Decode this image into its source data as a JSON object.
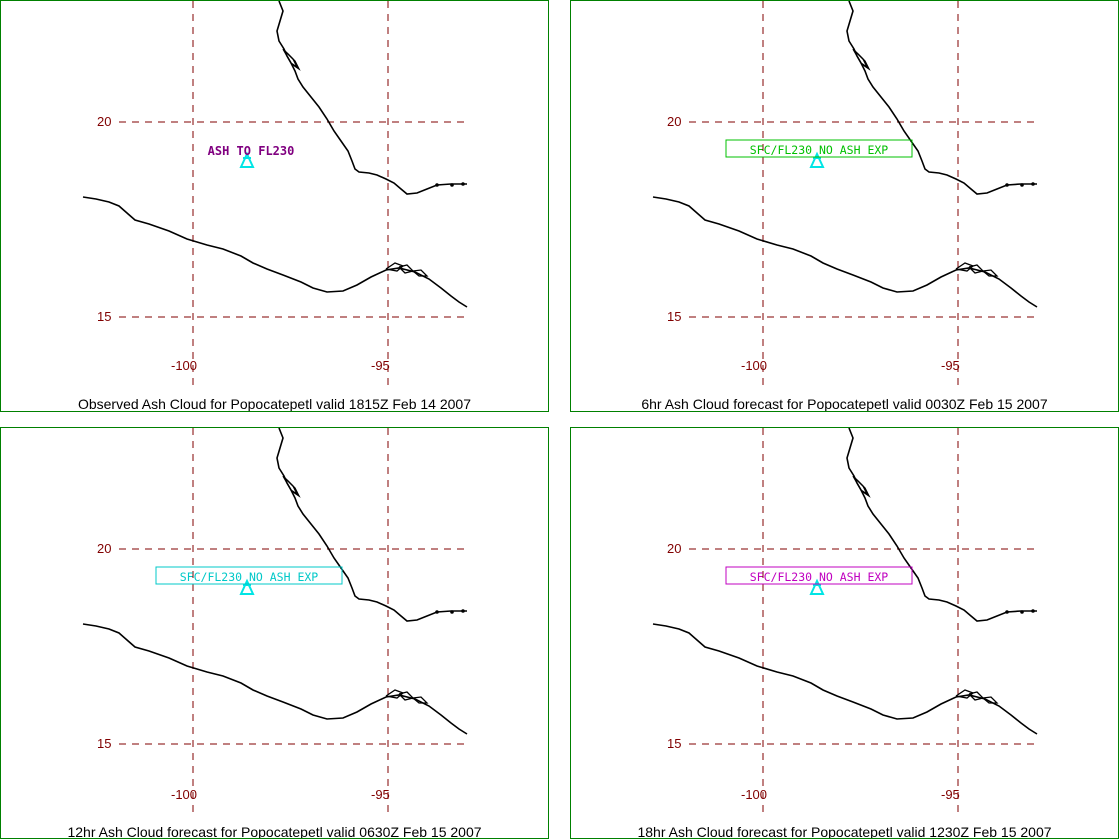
{
  "colors": {
    "border": "#008000",
    "grid": "#800000",
    "tick_text": "#800000",
    "coast": "#000000",
    "volcano": "#00e5e5"
  },
  "icons": {
    "volcano": "volcano-triangle-icon"
  },
  "axis": {
    "lat_ticks": [
      "20",
      "15"
    ],
    "lon_ticks": [
      "-100",
      "-95"
    ]
  },
  "panels": [
    {
      "caption": "Observed Ash Cloud for Popocatepetl valid 1815Z Feb 14 2007",
      "ash_label": "ASH TO FL230",
      "label_color": "#800080",
      "label_boxed": false
    },
    {
      "caption": "6hr Ash Cloud forecast for Popocatepetl valid 0030Z Feb 15 2007",
      "ash_label": "SFC/FL230 NO ASH EXP",
      "label_color": "#00c000",
      "label_boxed": true
    },
    {
      "caption": "12hr Ash Cloud forecast for Popocatepetl valid 0630Z Feb 15 2007",
      "ash_label": "SFC/FL230 NO ASH EXP",
      "label_color": "#00c8c8",
      "label_boxed": true
    },
    {
      "caption": "18hr Ash Cloud forecast for Popocatepetl valid 1230Z Feb 15 2007",
      "ash_label": "SFC/FL230 NO ASH EXP",
      "label_color": "#c000c0",
      "label_boxed": true
    }
  ]
}
